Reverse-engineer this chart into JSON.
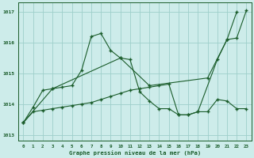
{
  "background_color": "#cdecea",
  "grid_color": "#9ecfca",
  "line_color": "#1a5c2a",
  "xlabel": "Graphe pression niveau de la mer (hPa)",
  "ylim": [
    1012.8,
    1017.3
  ],
  "xlim": [
    -0.5,
    23.5
  ],
  "yticks": [
    1013,
    1014,
    1015,
    1016,
    1017
  ],
  "xticks": [
    0,
    1,
    2,
    3,
    4,
    5,
    6,
    7,
    8,
    9,
    10,
    11,
    12,
    13,
    14,
    15,
    16,
    17,
    18,
    19,
    20,
    21,
    22,
    23
  ],
  "line1_x": [
    0,
    1,
    2,
    3,
    4,
    5,
    6,
    7,
    8,
    9,
    10,
    11,
    12,
    13,
    14,
    15,
    16,
    17,
    18,
    20,
    21,
    22
  ],
  "line1_y": [
    1013.4,
    1013.9,
    1014.45,
    1014.5,
    1014.55,
    1014.6,
    1015.1,
    1016.2,
    1016.3,
    1015.75,
    1015.5,
    1015.45,
    1014.4,
    1014.1,
    1013.85,
    1013.85,
    1013.65,
    1013.65,
    1013.75,
    1015.45,
    1016.1,
    1017.0
  ],
  "line2_x": [
    0,
    3,
    10,
    13,
    19,
    21,
    22,
    23
  ],
  "line2_y": [
    1013.4,
    1014.5,
    1015.5,
    1014.6,
    1014.85,
    1016.1,
    1016.15,
    1017.05
  ],
  "line3_x": [
    0,
    1,
    2,
    3,
    4,
    5,
    6,
    7,
    8,
    9,
    10,
    11,
    12,
    13,
    14,
    15,
    16,
    17,
    18,
    19,
    20,
    21,
    22,
    23
  ],
  "line3_y": [
    1013.4,
    1013.75,
    1013.8,
    1013.85,
    1013.9,
    1013.95,
    1014.0,
    1014.05,
    1014.15,
    1014.25,
    1014.35,
    1014.45,
    1014.5,
    1014.55,
    1014.6,
    1014.65,
    1013.65,
    1013.65,
    1013.75,
    1013.75,
    1014.15,
    1014.1,
    1013.85,
    1013.85
  ]
}
